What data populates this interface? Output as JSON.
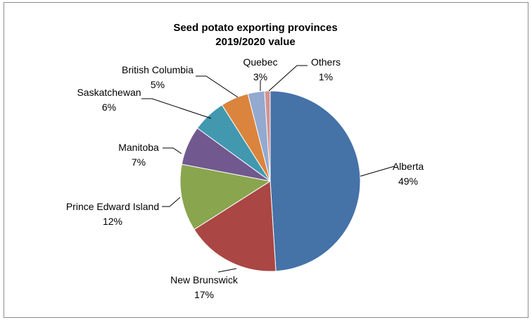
{
  "chart_data": {
    "type": "pie",
    "title_lines": [
      "Seed potato exporting provinces",
      "2019/2020 value"
    ],
    "slices": [
      {
        "label": "Alberta",
        "value": 49,
        "pct_label": "49%",
        "color": "#4572a7"
      },
      {
        "label": "New Brunswick",
        "value": 17,
        "pct_label": "17%",
        "color": "#aa4643"
      },
      {
        "label": "Prince Edward Island",
        "value": 12,
        "pct_label": "12%",
        "color": "#89a54e"
      },
      {
        "label": "Manitoba",
        "value": 7,
        "pct_label": "7%",
        "color": "#71588f"
      },
      {
        "label": "Saskatchewan",
        "value": 6,
        "pct_label": "6%",
        "color": "#4198af"
      },
      {
        "label": "British Columbia",
        "value": 5,
        "pct_label": "5%",
        "color": "#db843d"
      },
      {
        "label": "Quebec",
        "value": 3,
        "pct_label": "3%",
        "color": "#93a9cf"
      },
      {
        "label": "Others",
        "value": 1,
        "pct_label": "1%",
        "color": "#d19392"
      }
    ]
  }
}
